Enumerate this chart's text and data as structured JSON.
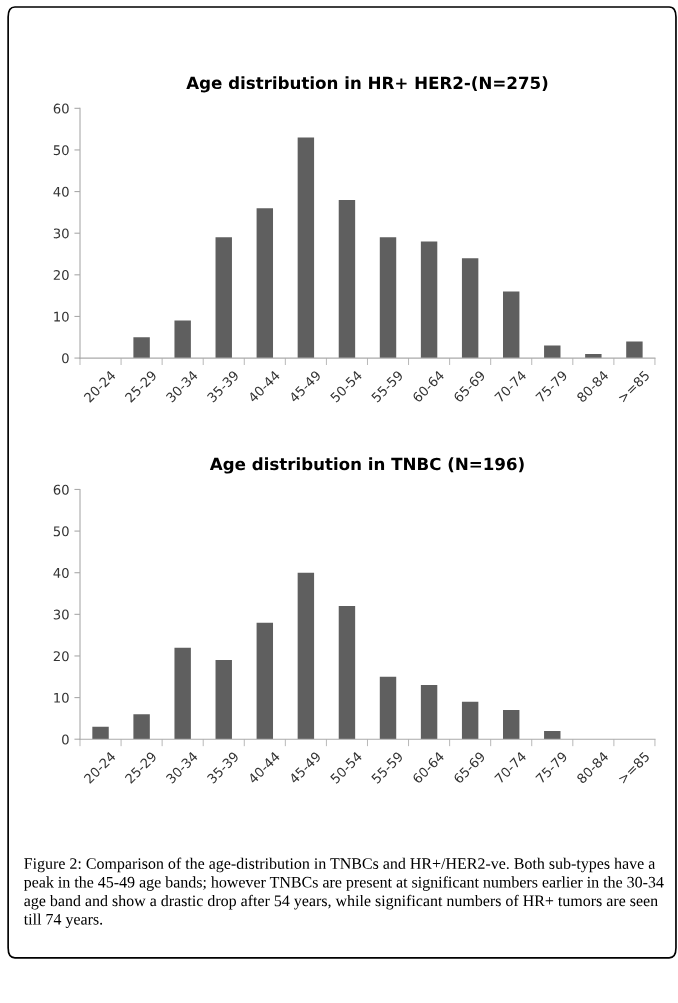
{
  "chart_data": [
    {
      "type": "bar",
      "title": "Age distribution in HR+ HER2-(N=275)",
      "categories": [
        "20-24",
        "25-29",
        "30-34",
        "35-39",
        "40-44",
        "45-49",
        "50-54",
        "55-59",
        "60-64",
        "65-69",
        "70-74",
        "75-79",
        "80-84",
        ">=85"
      ],
      "values": [
        0,
        5,
        9,
        29,
        36,
        53,
        38,
        29,
        28,
        24,
        16,
        3,
        1,
        4
      ],
      "color": "#5f5f5f",
      "ylim": [
        0,
        60
      ],
      "yticks": [
        0,
        10,
        20,
        30,
        40,
        50,
        60
      ],
      "grid": false
    },
    {
      "type": "bar",
      "title": "Age distribution in TNBC (N=196)",
      "categories": [
        "20-24",
        "25-29",
        "30-34",
        "35-39",
        "40-44",
        "45-49",
        "50-54",
        "55-59",
        "60-64",
        "65-69",
        "70-74",
        "75-79",
        "80-84",
        ">=85"
      ],
      "values": [
        3,
        6,
        22,
        19,
        28,
        40,
        32,
        15,
        13,
        9,
        7,
        2,
        0,
        0
      ],
      "color": "#5f5f5f",
      "ylim": [
        0,
        60
      ],
      "yticks": [
        0,
        10,
        20,
        30,
        40,
        50,
        60
      ],
      "grid": false,
      "annotations": [
        "Figure 2: Comparison of the age-distribution in TNBCs and HR+/HER2-ve. Both sub-types have a peak in the 45-49 age bands; however TNBCs are present at significant numbers earlier in the 30-34 age band and show a drastic drop after 54 years, while significant numbers of HR+ tumors are seen till 74 years."
      ]
    }
  ]
}
